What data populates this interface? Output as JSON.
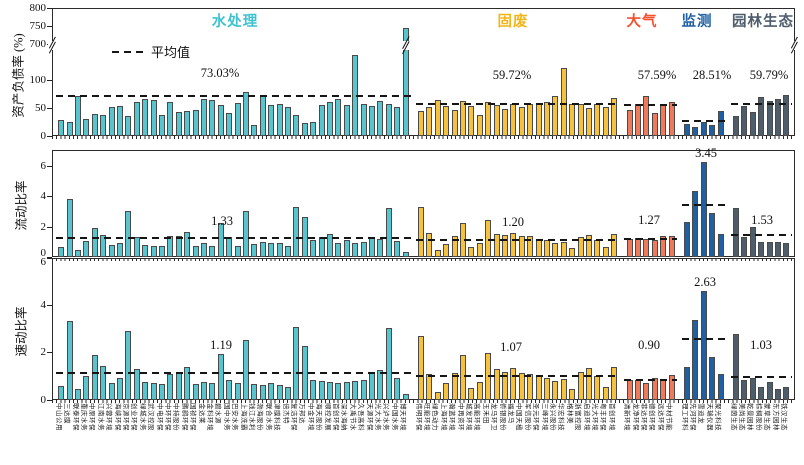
{
  "chart_data": {
    "type": "bar",
    "description": "Three stacked bar panels comparing listed Chinese environmental companies by sector: asset-liability ratio (broken y-axis), current ratio, quick ratio. Dashed lines mark each sector average.",
    "legend_label": "平均值",
    "panels": [
      {
        "key": "debt_ratio",
        "ylabel": "资产负债率 (%)",
        "broken_axis": true,
        "ylim_lower": [
          0,
          155
        ],
        "ylim_upper": [
          700,
          800
        ],
        "ytick_labels": [
          "800",
          "750",
          "700",
          "100",
          "50",
          "0"
        ]
      },
      {
        "key": "current_ratio",
        "ylabel": "流动比率",
        "broken_axis": false,
        "ylim": [
          0,
          7
        ],
        "ytick_labels": [
          "6",
          "4",
          "2",
          "0"
        ]
      },
      {
        "key": "quick_ratio",
        "ylabel": "速动比率",
        "broken_axis": false,
        "ylim": [
          0,
          6
        ],
        "ytick_labels": [
          "6",
          "4",
          "2",
          "0"
        ]
      }
    ],
    "groups": [
      {
        "name": "水处理",
        "color": "#57C4CE",
        "title_color": "#3FC2D0",
        "companies": [
          "中山公用",
          "三达膜",
          "联泰环保",
          "重庆水务",
          "中原环保",
          "江南水务",
          "兴蓉环境",
          "海峡环保",
          "京源环保",
          "创业环保",
          "绿城水务",
          "武汉控股",
          "中电环保",
          "中环环保",
          "中持股份",
          "鹏鹞环保",
          "国祯环保",
          "金达莱",
          "金科环境",
          "碧水源",
          "国中水务",
          "巴安水务",
          "上海洗霸",
          "钱江水利",
          "渤海股份",
          "联合水务",
          "津膜科技",
          "倍杰特",
          "复洁环保",
          "万邦达",
          "中金环境",
          "海天股份",
          "顺控发展",
          "首创环保",
          "深水海纳",
          "大禹节水",
          "久吾高科",
          "天源环保",
          "光大水务",
          "兴泸水务",
          "中国水务",
          "博天环境"
        ],
        "debt_ratio": [
          29,
          25,
          72,
          30,
          40,
          38,
          52,
          53,
          35,
          60,
          67,
          65,
          38,
          61,
          43,
          44,
          46,
          66,
          64,
          56,
          41,
          59,
          78,
          19,
          74,
          55,
          57,
          52,
          37,
          23,
          25,
          55,
          60,
          67,
          55,
          145,
          57,
          53,
          62,
          57,
          52,
          745
        ],
        "current_ratio": [
          0.65,
          3.8,
          0.45,
          1.05,
          1.9,
          1.45,
          0.8,
          0.95,
          3.0,
          1.3,
          0.8,
          0.7,
          0.75,
          1.4,
          1.4,
          1.65,
          0.75,
          0.95,
          0.75,
          2.25,
          1.3,
          0.75,
          3.0,
          0.85,
          1.0,
          0.95,
          0.9,
          0.75,
          3.3,
          2.6,
          1.15,
          1.3,
          1.5,
          0.95,
          1.1,
          0.95,
          1.0,
          1.3,
          1.2,
          3.2,
          1.05,
          0.3
        ],
        "quick_ratio": [
          0.6,
          3.35,
          0.45,
          1.0,
          1.9,
          1.45,
          0.7,
          0.95,
          2.9,
          1.3,
          0.75,
          0.7,
          0.68,
          1.1,
          1.2,
          1.4,
          0.68,
          0.75,
          0.7,
          1.95,
          0.85,
          0.7,
          2.55,
          0.68,
          0.65,
          0.7,
          0.65,
          0.55,
          3.1,
          2.3,
          0.85,
          0.8,
          0.75,
          0.7,
          0.75,
          0.8,
          0.85,
          1.15,
          1.25,
          3.05,
          0.95,
          0.25
        ],
        "averages": {
          "debt_ratio": "73.03%",
          "current_ratio": "1.33",
          "quick_ratio": "1.19"
        },
        "average_values": {
          "debt_ratio": 73.03,
          "current_ratio": 1.33,
          "quick_ratio": 1.19
        }
      },
      {
        "name": "固废",
        "color": "#F6C13D",
        "title_color": "#F2B61C",
        "companies": [
          "伟明环保",
          "旺能环境",
          "绿色动力",
          "上海环境",
          "瀚蓝环境",
          "中再资环",
          "城发环境",
          "高能环境",
          "玉禾田",
          "龙马环卫",
          "侨银股份",
          "福龙马",
          "中国天楹",
          "军信股份",
          "圣元环保",
          "三峰环境",
          "永兴股份",
          "华宏科技",
          "格林美",
          "浙富控股",
          "启迪环境",
          "光大环境",
          "粤丰环保",
          "首创环境"
        ],
        "debt_ratio": [
          44,
          52,
          65,
          54,
          47,
          62,
          53,
          37,
          60,
          55,
          48,
          58,
          52,
          58,
          57,
          60,
          72,
          122,
          58,
          57,
          50,
          57,
          52,
          68
        ],
        "current_ratio": [
          3.3,
          1.55,
          0.45,
          0.85,
          1.35,
          2.2,
          0.65,
          0.9,
          2.45,
          1.5,
          1.45,
          1.55,
          1.4,
          1.35,
          1.2,
          1.1,
          0.9,
          1.0,
          0.6,
          1.3,
          1.45,
          1.1,
          0.65,
          1.5
        ],
        "quick_ratio": [
          2.7,
          1.1,
          0.35,
          0.7,
          1.15,
          1.9,
          0.5,
          0.75,
          2.0,
          1.3,
          1.2,
          1.35,
          1.15,
          1.1,
          1.0,
          0.95,
          0.8,
          0.9,
          0.45,
          1.2,
          1.35,
          1.0,
          0.55,
          1.4
        ],
        "averages": {
          "debt_ratio": "59.72%",
          "current_ratio": "1.20",
          "quick_ratio": "1.07"
        },
        "average_values": {
          "debt_ratio": 59.72,
          "current_ratio": 1.2,
          "quick_ratio": 1.07
        }
      },
      {
        "name": "大气",
        "color": "#F0795A",
        "title_color": "#F4502E",
        "companies": [
          "清新环境",
          "龙净环保",
          "菲达环保",
          "德创环保",
          "远达环保",
          "中材节能"
        ],
        "debt_ratio": [
          46,
          57,
          71,
          42,
          58,
          61
        ],
        "current_ratio": [
          1.2,
          1.25,
          1.2,
          1.15,
          1.35,
          1.35
        ],
        "quick_ratio": [
          0.85,
          0.85,
          0.7,
          0.95,
          0.9,
          1.05
        ],
        "averages": {
          "debt_ratio": "57.59%",
          "current_ratio": "1.27",
          "quick_ratio": "0.90"
        },
        "average_values": {
          "debt_ratio": 57.59,
          "current_ratio": 1.27,
          "quick_ratio": 0.9
        }
      },
      {
        "name": "监测",
        "color": "#1F5FA3",
        "title_color": "#1F5FA3",
        "companies": [
          "理工环科",
          "先河环保",
          "雪迪龙",
          "天瑞仪器",
          "聚光科技"
        ],
        "debt_ratio": [
          22,
          16,
          25,
          19,
          45
        ],
        "current_ratio": [
          2.3,
          4.3,
          6.2,
          2.9,
          1.5
        ],
        "quick_ratio": [
          1.4,
          3.4,
          4.6,
          1.8,
          1.1
        ],
        "averages": {
          "debt_ratio": "28.51%",
          "current_ratio": "3.45",
          "quick_ratio": "2.63"
        },
        "average_values": {
          "debt_ratio": 28.51,
          "current_ratio": 3.45,
          "quick_ratio": 2.63
        }
      },
      {
        "name": "园林生态",
        "color": "#4D5D6C",
        "title_color": "#4D5D6C",
        "companies": [
          "绿茵生态",
          "美尚生态",
          "乾景园林",
          "棕榈股份",
          "蒙草生态",
          "东方园林",
          "铁汉生态"
        ],
        "debt_ratio": [
          36,
          53,
          43,
          69,
          63,
          67,
          73
        ],
        "current_ratio": [
          3.2,
          1.3,
          2.0,
          1.0,
          1.0,
          1.0,
          0.9
        ],
        "quick_ratio": [
          2.8,
          0.85,
          0.95,
          0.55,
          0.75,
          0.45,
          0.55
        ],
        "averages": {
          "debt_ratio": "59.79%",
          "current_ratio": "1.53",
          "quick_ratio": "1.03"
        },
        "average_values": {
          "debt_ratio": 59.79,
          "current_ratio": 1.53,
          "quick_ratio": 1.03
        }
      }
    ]
  }
}
